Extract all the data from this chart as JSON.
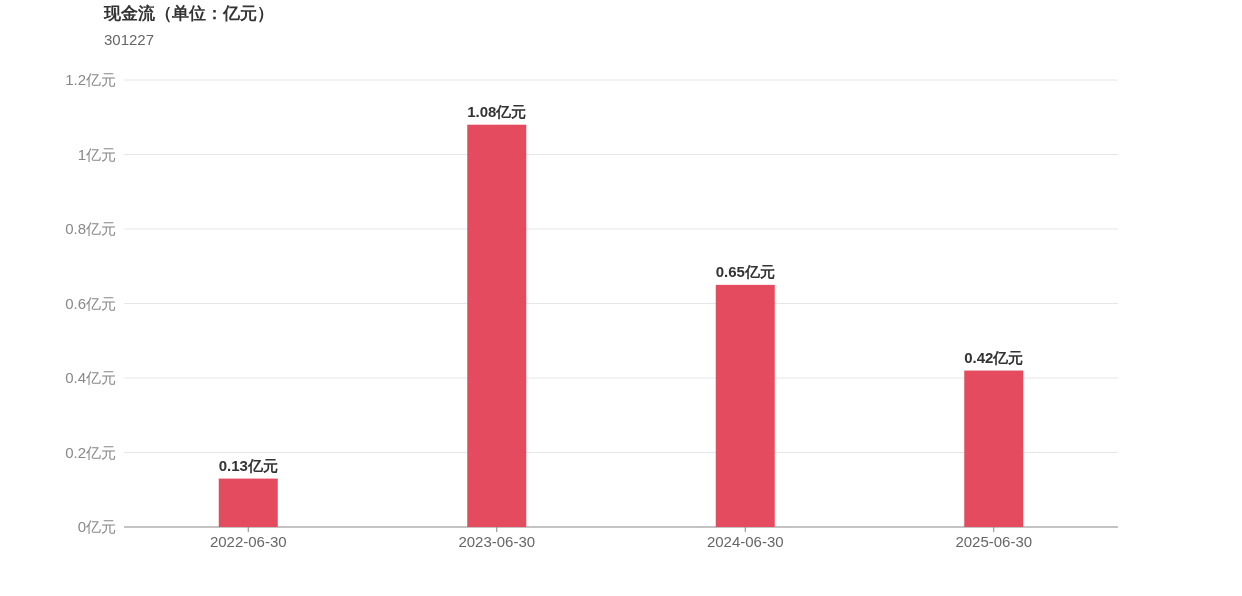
{
  "chart_data": {
    "type": "bar",
    "title": "现金流（单位：亿元）",
    "subtitle": "301227",
    "categories": [
      "2022-06-30",
      "2023-06-30",
      "2024-06-30",
      "2025-06-30"
    ],
    "values": [
      0.13,
      1.08,
      0.65,
      0.42
    ],
    "value_labels": [
      "0.13亿元",
      "1.08亿元",
      "0.65亿元",
      "0.42亿元"
    ],
    "color": "#e54b5f",
    "ylim": [
      0,
      1.2
    ],
    "yticks": [
      {
        "value": 0,
        "label": "0亿元"
      },
      {
        "value": 0.2,
        "label": "0.2亿元"
      },
      {
        "value": 0.4,
        "label": "0.4亿元"
      },
      {
        "value": 0.6,
        "label": "0.6亿元"
      },
      {
        "value": 0.8,
        "label": "0.8亿元"
      },
      {
        "value": 1,
        "label": "1亿元"
      },
      {
        "value": 1.2,
        "label": "1.2亿元"
      }
    ],
    "grid": "y"
  }
}
